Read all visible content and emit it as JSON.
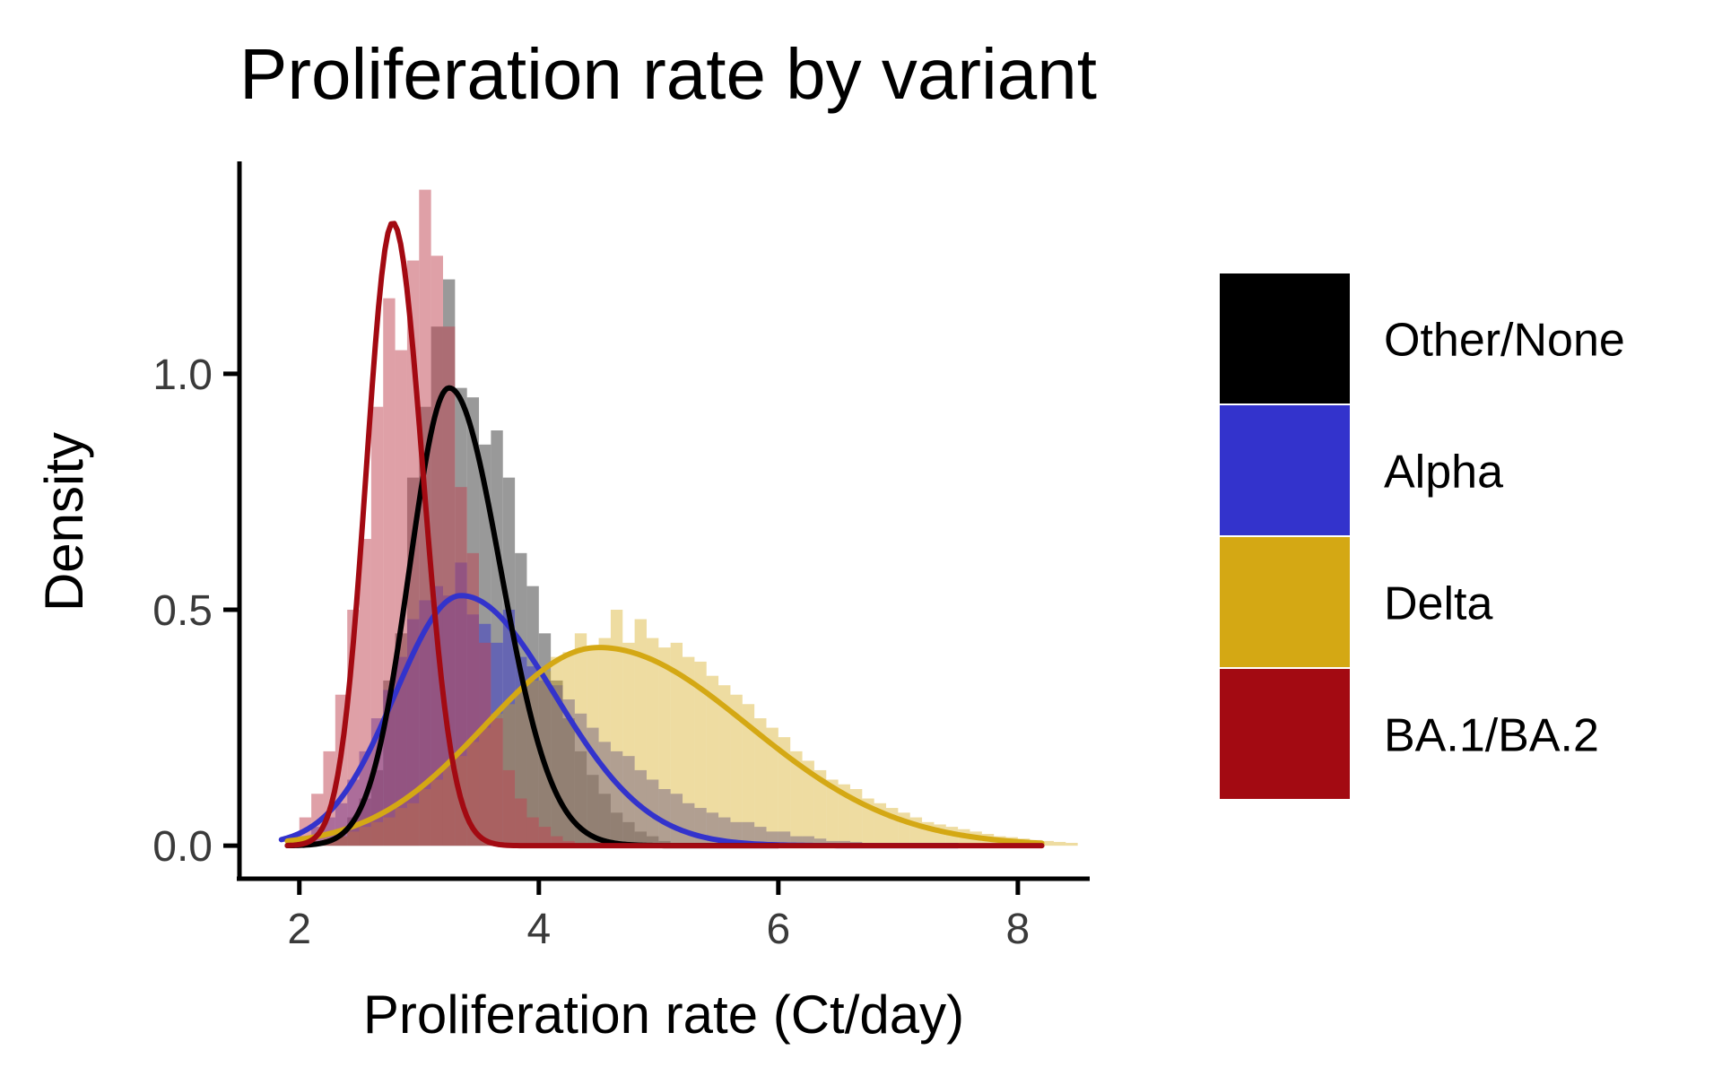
{
  "chart_data": {
    "type": "histogram-density",
    "title": "Proliferation rate by variant",
    "xlabel": "Proliferation rate (Ct/day)",
    "ylabel": "Density",
    "xlim": [
      1.5,
      8.6
    ],
    "ylim": [
      -0.07,
      1.45
    ],
    "xticks": [
      {
        "value": 2,
        "label": "2"
      },
      {
        "value": 4,
        "label": "4"
      },
      {
        "value": 6,
        "label": "6"
      },
      {
        "value": 8,
        "label": "8"
      }
    ],
    "yticks": [
      {
        "value": 0.0,
        "label": "0.0"
      },
      {
        "value": 0.5,
        "label": "0.5"
      },
      {
        "value": 1.0,
        "label": "1.0"
      }
    ],
    "bin_width": 0.1,
    "grid": false,
    "legend_position": "right",
    "series": [
      {
        "name": "Other/None",
        "color": "#000000",
        "fill": "#808080",
        "fill_opacity": 0.8,
        "curve": {
          "mode": 3.25,
          "peak": 0.97,
          "sd_left": 0.33,
          "sd_right": 0.43,
          "x_min": 1.9,
          "x_max": 6.0
        },
        "hist": {
          "start": 1.9,
          "values": [
            0.0,
            0.0,
            0.005,
            0.01,
            0.02,
            0.06,
            0.1,
            0.16,
            0.35,
            0.45,
            0.78,
            0.93,
            1.1,
            1.2,
            0.97,
            0.95,
            0.85,
            0.88,
            0.78,
            0.62,
            0.55,
            0.45,
            0.35,
            0.27,
            0.2,
            0.15,
            0.11,
            0.07,
            0.05,
            0.03,
            0.02,
            0.01,
            0.005,
            0.003,
            0.002,
            0.001,
            0.0,
            0.0
          ]
        }
      },
      {
        "name": "Alpha",
        "color": "#3333CC",
        "fill": "#3333CC",
        "fill_opacity": 0.5,
        "curve": {
          "mode": 3.35,
          "peak": 0.53,
          "sd_left": 0.55,
          "sd_right": 0.78,
          "x_min": 1.85,
          "x_max": 7.5
        },
        "hist": {
          "start": 1.9,
          "values": [
            0.01,
            0.02,
            0.04,
            0.06,
            0.09,
            0.14,
            0.2,
            0.27,
            0.33,
            0.4,
            0.48,
            0.52,
            0.55,
            0.53,
            0.6,
            0.49,
            0.47,
            0.43,
            0.5,
            0.4,
            0.38,
            0.35,
            0.34,
            0.31,
            0.28,
            0.25,
            0.22,
            0.2,
            0.19,
            0.16,
            0.14,
            0.12,
            0.11,
            0.09,
            0.08,
            0.07,
            0.06,
            0.05,
            0.05,
            0.04,
            0.03,
            0.03,
            0.02,
            0.02,
            0.015,
            0.01,
            0.01,
            0.008,
            0.006,
            0.005
          ]
        }
      },
      {
        "name": "Delta",
        "color": "#D4A814",
        "fill": "#D4A814",
        "fill_opacity": 0.4,
        "curve": {
          "mode": 4.5,
          "peak": 0.42,
          "sd_left": 0.95,
          "sd_right": 1.25,
          "x_min": 1.9,
          "x_max": 8.2
        },
        "hist": {
          "start": 1.9,
          "values": [
            0.0,
            0.005,
            0.01,
            0.015,
            0.02,
            0.03,
            0.04,
            0.05,
            0.06,
            0.08,
            0.09,
            0.12,
            0.14,
            0.17,
            0.19,
            0.22,
            0.25,
            0.28,
            0.3,
            0.33,
            0.35,
            0.37,
            0.4,
            0.41,
            0.45,
            0.42,
            0.44,
            0.5,
            0.43,
            0.48,
            0.44,
            0.42,
            0.43,
            0.4,
            0.39,
            0.36,
            0.34,
            0.32,
            0.3,
            0.27,
            0.25,
            0.23,
            0.2,
            0.18,
            0.16,
            0.14,
            0.13,
            0.12,
            0.1,
            0.09,
            0.08,
            0.07,
            0.06,
            0.05,
            0.045,
            0.04,
            0.035,
            0.03,
            0.025,
            0.02,
            0.018,
            0.015,
            0.012,
            0.01,
            0.008,
            0.006
          ]
        }
      },
      {
        "name": "BA.1/BA.2",
        "color": "#A30A12",
        "fill": "#C0424F",
        "fill_opacity": 0.5,
        "curve": {
          "mode": 2.78,
          "peak": 1.32,
          "sd_left": 0.22,
          "sd_right": 0.25,
          "x_min": 1.9,
          "x_max": 8.2
        },
        "hist": {
          "start": 1.9,
          "values": [
            0.02,
            0.06,
            0.11,
            0.2,
            0.32,
            0.5,
            0.65,
            0.93,
            1.16,
            1.05,
            1.24,
            1.39,
            1.25,
            1.1,
            0.76,
            0.62,
            0.43,
            0.27,
            0.16,
            0.1,
            0.06,
            0.04,
            0.02,
            0.01,
            0.005
          ]
        }
      }
    ]
  }
}
